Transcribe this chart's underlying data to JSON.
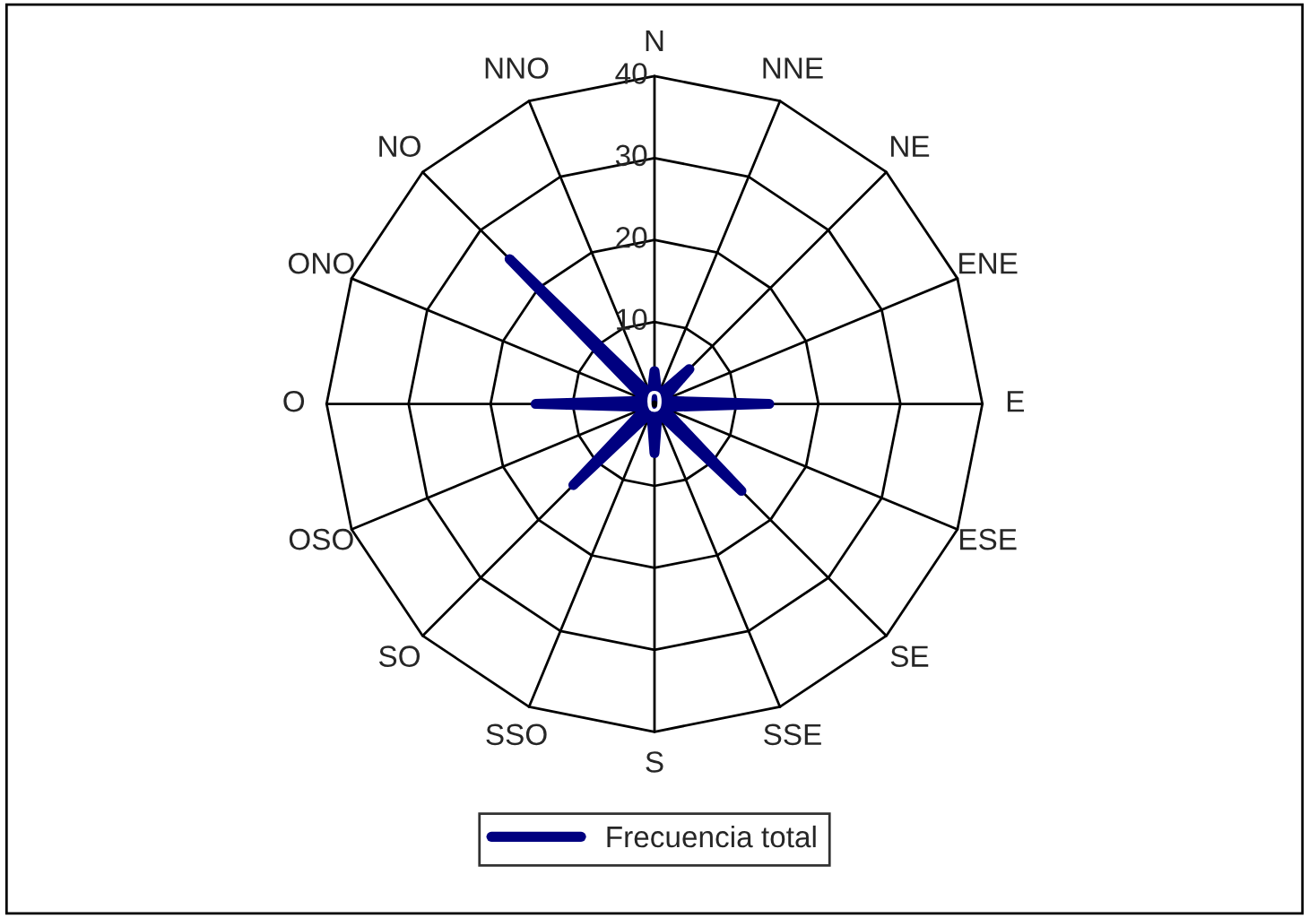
{
  "chart_data": {
    "type": "radar",
    "categories": [
      "N",
      "NNE",
      "NE",
      "ENE",
      "E",
      "ESE",
      "SE",
      "SSE",
      "S",
      "SSO",
      "SO",
      "OSO",
      "O",
      "ONO",
      "NO",
      "NNO"
    ],
    "series": [
      {
        "name": "Frecuencia total",
        "color": "#000080",
        "values": [
          4,
          1,
          6,
          1,
          14,
          1,
          15,
          1,
          6,
          1,
          14,
          1,
          14.5,
          1,
          25,
          1
        ]
      }
    ],
    "ylim": [
      0,
      40
    ],
    "yticks": [
      0,
      10,
      20,
      30,
      40
    ],
    "legend": "bottom",
    "marker": "none",
    "line_style": "solid"
  }
}
